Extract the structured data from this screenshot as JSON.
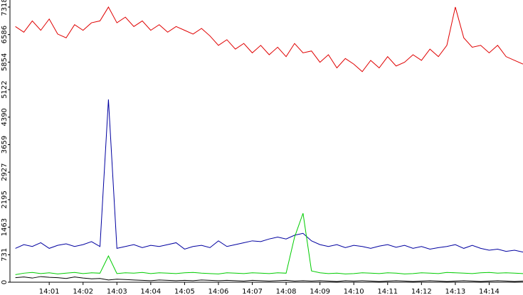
{
  "chart_data": {
    "type": "line",
    "x": [
      0,
      0.25,
      0.5,
      0.75,
      1,
      1.25,
      1.5,
      1.75,
      2,
      2.25,
      2.5,
      2.75,
      3,
      3.25,
      3.5,
      3.75,
      4,
      4.25,
      4.5,
      4.75,
      5,
      5.25,
      5.5,
      5.75,
      6,
      6.25,
      6.5,
      6.75,
      7,
      7.25,
      7.5,
      7.75,
      8,
      8.25,
      8.5,
      8.75,
      9,
      9.25,
      9.5,
      9.75,
      10,
      10.25,
      10.5,
      10.75,
      11,
      11.25,
      11.5,
      11.75,
      12,
      12.25,
      12.5,
      12.75,
      13,
      13.25,
      13.5,
      13.75,
      14,
      14.25,
      14.5,
      14.75,
      15
    ],
    "series": [
      {
        "color": "#e00000",
        "values": [
          6800,
          6650,
          6950,
          6700,
          7000,
          6600,
          6500,
          6850,
          6700,
          6900,
          6950,
          7318,
          6900,
          7050,
          6800,
          6950,
          6700,
          6850,
          6650,
          6800,
          6700,
          6600,
          6750,
          6550,
          6300,
          6450,
          6200,
          6350,
          6100,
          6300,
          6050,
          6250,
          6000,
          6350,
          6100,
          6150,
          5850,
          6050,
          5700,
          5950,
          5800,
          5600,
          5900,
          5700,
          6000,
          5750,
          5850,
          6050,
          5900,
          6200,
          6000,
          6300,
          7318,
          6500,
          6250,
          6300,
          6100,
          6300,
          6000,
          5900,
          5800
        ]
      },
      {
        "color": "#0000a0",
        "values": [
          900,
          1000,
          950,
          1050,
          900,
          980,
          1020,
          950,
          1000,
          1080,
          950,
          4860,
          900,
          950,
          1000,
          920,
          980,
          950,
          1000,
          1050,
          880,
          950,
          980,
          920,
          1100,
          950,
          1000,
          1050,
          1100,
          1080,
          1150,
          1200,
          1150,
          1250,
          1300,
          1100,
          1000,
          950,
          1000,
          920,
          980,
          950,
          900,
          960,
          1000,
          930,
          980,
          900,
          950,
          880,
          920,
          950,
          1000,
          900,
          980,
          900,
          850,
          880,
          820,
          850,
          800
        ]
      },
      {
        "color": "#00cc00",
        "values": [
          200,
          240,
          260,
          230,
          250,
          220,
          240,
          260,
          230,
          250,
          240,
          700,
          230,
          250,
          240,
          260,
          230,
          250,
          240,
          230,
          250,
          260,
          240,
          230,
          220,
          250,
          240,
          230,
          250,
          240,
          230,
          250,
          240,
          1200,
          1834,
          300,
          250,
          230,
          240,
          220,
          230,
          250,
          240,
          230,
          250,
          240,
          220,
          230,
          250,
          240,
          230,
          260,
          250,
          240,
          230,
          250,
          260,
          240,
          250,
          240,
          230
        ]
      },
      {
        "color": "#000000",
        "values": [
          120,
          140,
          110,
          150,
          130,
          120,
          100,
          140,
          110,
          90,
          100,
          60,
          80,
          70,
          60,
          50,
          40,
          60,
          50,
          40,
          50,
          40,
          60,
          50,
          40,
          50,
          40,
          30,
          50,
          40,
          30,
          40,
          50,
          30,
          40,
          30,
          40,
          30,
          20,
          40,
          30,
          40,
          30,
          20,
          30,
          40,
          30,
          20,
          30,
          40,
          30,
          20,
          30,
          40,
          30,
          20,
          30,
          40,
          30,
          20,
          30
        ]
      }
    ],
    "xlim": [
      -0.16,
      15.0
    ],
    "xticks": [
      {
        "value": 1,
        "label": "14:01"
      },
      {
        "value": 2,
        "label": "14:02"
      },
      {
        "value": 3,
        "label": "14:03"
      },
      {
        "value": 4,
        "label": "14:04"
      },
      {
        "value": 5,
        "label": "14:05"
      },
      {
        "value": 6,
        "label": "14:06"
      },
      {
        "value": 7,
        "label": "14:07"
      },
      {
        "value": 8,
        "label": "14:08"
      },
      {
        "value": 9,
        "label": "14:09"
      },
      {
        "value": 10,
        "label": "14:10"
      },
      {
        "value": 11,
        "label": "14:11"
      },
      {
        "value": 12,
        "label": "14:12"
      },
      {
        "value": 13,
        "label": "14:13"
      },
      {
        "value": 14,
        "label": "14:14"
      }
    ],
    "ylim": [
      0,
      7506
    ],
    "yticks": [
      0,
      731,
      1463,
      2195,
      2927,
      3659,
      4390,
      5122,
      5854,
      6586,
      7318
    ]
  }
}
